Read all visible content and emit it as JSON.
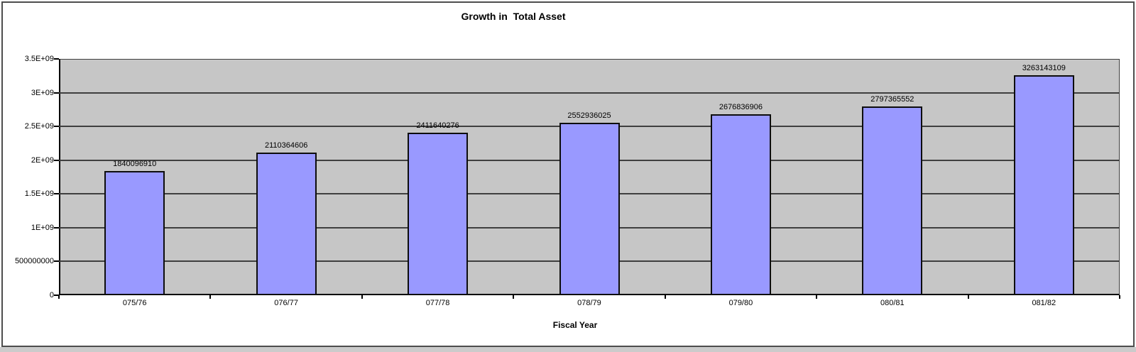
{
  "chart_data": {
    "type": "bar",
    "title": "Growth in  Total Asset",
    "xlabel": "Fiscal Year",
    "ylabel": "",
    "categories": [
      "075/76",
      "076/77",
      "077/78",
      "078/79",
      "079/80",
      "080/81",
      "081/82"
    ],
    "values": [
      1840096910,
      2110364606,
      2411640276,
      2552936025,
      2676836906,
      2797365552,
      3263143109
    ],
    "bar_labels": [
      "1840096910",
      "2110364606",
      "2411640276",
      "2552936025",
      "2676836906",
      "2797365552",
      "3263143109"
    ],
    "y_ticks": [
      {
        "label": "0",
        "value": 0
      },
      {
        "label": "500000000",
        "value": 500000000
      },
      {
        "label": "1E+09",
        "value": 1000000000
      },
      {
        "label": "1.5E+09",
        "value": 1500000000
      },
      {
        "label": "2E+09",
        "value": 2000000000
      },
      {
        "label": "2.5E+09",
        "value": 2500000000
      },
      {
        "label": "3E+09",
        "value": 3000000000
      },
      {
        "label": "3.5E+09",
        "value": 3500000000
      }
    ],
    "ylim": [
      0,
      3500000000
    ],
    "grid": true,
    "legend": false,
    "colors": {
      "bar_fill": "#9999FF",
      "bar_border": "#0D0D0D",
      "plot_bg": "#C6C6C6",
      "gridline": "#3F3F3F",
      "axis": "#000000",
      "text": "#000000"
    }
  }
}
